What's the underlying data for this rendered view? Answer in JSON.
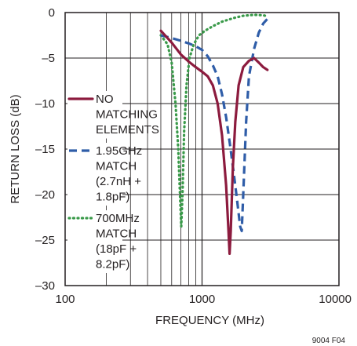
{
  "chart_data": {
    "type": "line",
    "title": "",
    "xlabel": "FREQUENCY (MHz)",
    "ylabel": "RETURN LOSS (dB)",
    "xscale": "log",
    "xlim": [
      100,
      10000
    ],
    "ylim": [
      -30,
      0
    ],
    "x_ticks": [
      100,
      1000,
      10000
    ],
    "x_tick_labels": [
      "100",
      "1000",
      "10000"
    ],
    "y_ticks": [
      0,
      -5,
      -10,
      -15,
      -20,
      -25,
      -30
    ],
    "y_tick_labels": [
      "0",
      "–5",
      "–10",
      "–15",
      "–20",
      "–25",
      "–30"
    ],
    "grid": true,
    "legend_position": "left-inside",
    "footer_note": "9004 F04",
    "series": [
      {
        "legend": [
          "NO",
          "MATCHING",
          "ELEMENTS"
        ],
        "color": "#8c1b3e",
        "style": "solid",
        "points": [
          [
            500,
            -2.0
          ],
          [
            600,
            -3.3
          ],
          [
            700,
            -4.6
          ],
          [
            800,
            -5.4
          ],
          [
            900,
            -6.0
          ],
          [
            1000,
            -6.5
          ],
          [
            1100,
            -7.0
          ],
          [
            1200,
            -8.0
          ],
          [
            1300,
            -10.0
          ],
          [
            1400,
            -13.5
          ],
          [
            1500,
            -19.0
          ],
          [
            1560,
            -24.0
          ],
          [
            1590,
            -26.5
          ],
          [
            1620,
            -24.0
          ],
          [
            1680,
            -17.0
          ],
          [
            1750,
            -12.0
          ],
          [
            1850,
            -8.0
          ],
          [
            2000,
            -6.0
          ],
          [
            2200,
            -5.3
          ],
          [
            2400,
            -5.0
          ],
          [
            2600,
            -5.5
          ],
          [
            2800,
            -6.0
          ],
          [
            3000,
            -6.3
          ]
        ]
      },
      {
        "legend": [
          "1.95GHz",
          "MATCH",
          "(2.7nH +",
          "1.8pF)"
        ],
        "color": "#2f5da8",
        "style": "dashed",
        "points": [
          [
            500,
            -2.5
          ],
          [
            600,
            -2.8
          ],
          [
            700,
            -3.1
          ],
          [
            800,
            -3.4
          ],
          [
            900,
            -3.7
          ],
          [
            1000,
            -4.1
          ],
          [
            1100,
            -4.8
          ],
          [
            1200,
            -5.8
          ],
          [
            1300,
            -7.0
          ],
          [
            1400,
            -9.0
          ],
          [
            1500,
            -11.5
          ],
          [
            1600,
            -14.5
          ],
          [
            1700,
            -17.5
          ],
          [
            1800,
            -20.5
          ],
          [
            1900,
            -23.5
          ],
          [
            1950,
            -24.0
          ],
          [
            2000,
            -20.0
          ],
          [
            2100,
            -12.0
          ],
          [
            2200,
            -7.0
          ],
          [
            2400,
            -4.0
          ],
          [
            2600,
            -2.2
          ],
          [
            2800,
            -1.2
          ],
          [
            3000,
            -0.7
          ]
        ]
      },
      {
        "legend": [
          "700MHz",
          "MATCH",
          "(18pF +",
          "8.2pF)"
        ],
        "color": "#3a9a4a",
        "style": "dotted",
        "points": [
          [
            500,
            -2.5
          ],
          [
            560,
            -3.5
          ],
          [
            600,
            -5.5
          ],
          [
            640,
            -10.0
          ],
          [
            670,
            -15.0
          ],
          [
            690,
            -20.0
          ],
          [
            705,
            -23.5
          ],
          [
            720,
            -20.0
          ],
          [
            740,
            -13.0
          ],
          [
            770,
            -8.0
          ],
          [
            810,
            -5.0
          ],
          [
            870,
            -3.5
          ],
          [
            950,
            -2.5
          ],
          [
            1050,
            -2.0
          ],
          [
            1200,
            -1.5
          ],
          [
            1400,
            -1.0
          ],
          [
            1700,
            -0.6
          ],
          [
            2000,
            -0.35
          ],
          [
            2400,
            -0.25
          ],
          [
            2800,
            -0.3
          ],
          [
            3000,
            -0.4
          ]
        ]
      }
    ]
  }
}
